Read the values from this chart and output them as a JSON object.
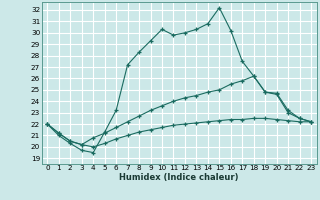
{
  "xlabel": "Humidex (Indice chaleur)",
  "bg_color": "#cce8e8",
  "grid_color": "#ffffff",
  "line_color": "#1a6b60",
  "xlim": [
    -0.5,
    23.5
  ],
  "ylim": [
    18.5,
    32.7
  ],
  "xticks": [
    0,
    1,
    2,
    3,
    4,
    5,
    6,
    7,
    8,
    9,
    10,
    11,
    12,
    13,
    14,
    15,
    16,
    17,
    18,
    19,
    20,
    21,
    22,
    23
  ],
  "yticks": [
    19,
    20,
    21,
    22,
    23,
    24,
    25,
    26,
    27,
    28,
    29,
    30,
    31,
    32
  ],
  "series1_x": [
    0,
    1,
    2,
    3,
    4,
    5,
    6,
    7,
    8,
    9,
    10,
    11,
    12,
    13,
    14,
    15,
    16,
    17,
    18,
    19,
    20,
    21,
    22,
    23
  ],
  "series1_y": [
    22.0,
    21.0,
    20.3,
    19.7,
    19.5,
    21.3,
    23.2,
    27.2,
    28.3,
    29.3,
    30.3,
    29.8,
    30.0,
    30.3,
    30.8,
    32.2,
    30.2,
    27.5,
    26.2,
    24.8,
    24.6,
    23.0,
    22.5,
    22.2
  ],
  "series2_x": [
    0,
    1,
    2,
    3,
    4,
    5,
    6,
    7,
    8,
    9,
    10,
    11,
    12,
    13,
    14,
    15,
    16,
    17,
    18,
    19,
    20,
    21,
    22,
    23
  ],
  "series2_y": [
    22.0,
    21.2,
    20.5,
    20.2,
    20.8,
    21.2,
    21.7,
    22.2,
    22.7,
    23.2,
    23.6,
    24.0,
    24.3,
    24.5,
    24.8,
    25.0,
    25.5,
    25.8,
    26.2,
    24.8,
    24.7,
    23.2,
    22.5,
    22.2
  ],
  "series3_x": [
    0,
    1,
    2,
    3,
    4,
    5,
    6,
    7,
    8,
    9,
    10,
    11,
    12,
    13,
    14,
    15,
    16,
    17,
    18,
    19,
    20,
    21,
    22,
    23
  ],
  "series3_y": [
    22.0,
    21.2,
    20.5,
    20.2,
    20.0,
    20.3,
    20.7,
    21.0,
    21.3,
    21.5,
    21.7,
    21.9,
    22.0,
    22.1,
    22.2,
    22.3,
    22.4,
    22.4,
    22.5,
    22.5,
    22.4,
    22.3,
    22.2,
    22.2
  ],
  "xlabel_fontsize": 6.0,
  "tick_fontsize": 5.2
}
